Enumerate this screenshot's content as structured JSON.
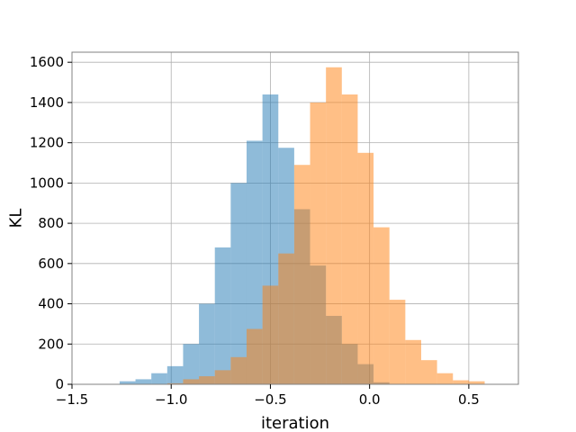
{
  "chart_data": {
    "type": "bar",
    "title": "",
    "xlabel": "iteration",
    "ylabel": "KL",
    "xlim": [
      -1.5,
      0.75
    ],
    "ylim": [
      0,
      1650
    ],
    "xticks": [
      -1.5,
      -1.0,
      -0.5,
      0.0,
      0.5
    ],
    "xtick_labels": [
      "−1.5",
      "−1.0",
      "−0.5",
      "0.0",
      "0.5"
    ],
    "yticks": [
      0,
      200,
      400,
      600,
      800,
      1000,
      1200,
      1400,
      1600
    ],
    "ytick_labels": [
      "0",
      "200",
      "400",
      "600",
      "800",
      "1000",
      "1200",
      "1400",
      "1600"
    ],
    "grid": true,
    "bin_width": 0.08,
    "series": [
      {
        "color": "#1f77b4",
        "opacity": 0.5,
        "bin_starts": [
          -1.26,
          -1.18,
          -1.1,
          -1.02,
          -0.94,
          -0.86,
          -0.78,
          -0.7,
          -0.62,
          -0.54,
          -0.46,
          -0.38,
          -0.3,
          -0.22,
          -0.14,
          -0.06,
          0.02
        ],
        "values": [
          15,
          25,
          55,
          90,
          200,
          400,
          680,
          1000,
          1210,
          1440,
          1175,
          870,
          590,
          340,
          200,
          100,
          10
        ]
      },
      {
        "color": "#ff7f0e",
        "opacity": 0.5,
        "bin_starts": [
          -1.02,
          -0.94,
          -0.86,
          -0.78,
          -0.7,
          -0.62,
          -0.54,
          -0.46,
          -0.38,
          -0.3,
          -0.22,
          -0.14,
          -0.06,
          0.02,
          0.1,
          0.18,
          0.26,
          0.34,
          0.42,
          0.5
        ],
        "values": [
          5,
          25,
          40,
          70,
          135,
          275,
          490,
          650,
          1090,
          1400,
          1575,
          1440,
          1150,
          780,
          420,
          220,
          120,
          55,
          20,
          15
        ]
      }
    ]
  }
}
